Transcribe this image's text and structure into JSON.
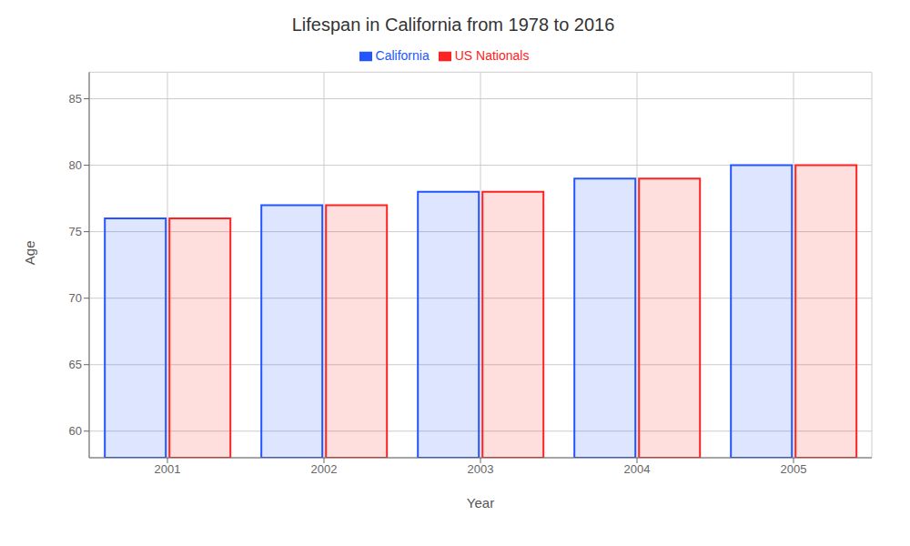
{
  "chart_data": {
    "type": "bar",
    "title": "Lifespan in California from 1978 to 2016",
    "xlabel": "Year",
    "ylabel": "Age",
    "categories": [
      "2001",
      "2002",
      "2003",
      "2004",
      "2005"
    ],
    "series": [
      {
        "name": "California",
        "color": "#2255ff",
        "values": [
          76.0,
          77.0,
          78.0,
          79.0,
          80.0
        ]
      },
      {
        "name": "US Nationals",
        "color": "#ff2222",
        "values": [
          76.0,
          77.0,
          78.0,
          79.0,
          80.0
        ]
      }
    ],
    "ylim": [
      58,
      87
    ],
    "yticks": [
      60,
      65,
      70,
      75,
      80,
      85
    ],
    "grid": true,
    "legend": "top"
  }
}
